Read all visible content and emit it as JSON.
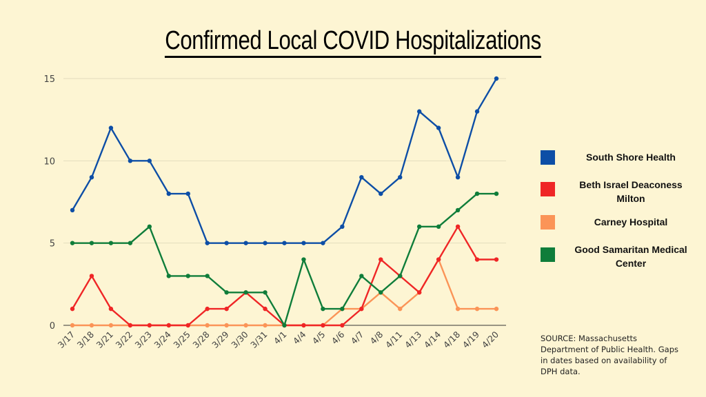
{
  "chart_data": {
    "type": "line",
    "title": "Confirmed Local COVID Hospitalizations",
    "xlabel": "",
    "ylabel": "",
    "ylim": [
      0,
      15
    ],
    "yticks": [
      0,
      5,
      10,
      15
    ],
    "grid": true,
    "legend": "right",
    "categories": [
      "3/17",
      "3/18",
      "3/21",
      "3/22",
      "3/23",
      "3/24",
      "3/25",
      "3/28",
      "3/29",
      "3/30",
      "3/31",
      "4/1",
      "4/4",
      "4/5",
      "4/6",
      "4/7",
      "4/8",
      "4/11",
      "4/13",
      "4/14",
      "4/18",
      "4/19",
      "4/20"
    ],
    "series": [
      {
        "name": "South Shore Health",
        "color": "#0d4ea6",
        "values": [
          7,
          9,
          12,
          10,
          10,
          8,
          8,
          5,
          5,
          5,
          5,
          5,
          5,
          5,
          6,
          9,
          8,
          9,
          13,
          12,
          9,
          13,
          15
        ]
      },
      {
        "name": "Beth Israel Deaconess Milton",
        "color": "#ef2626",
        "values": [
          1,
          3,
          1,
          0,
          0,
          0,
          0,
          1,
          1,
          2,
          1,
          0,
          0,
          0,
          0,
          1,
          4,
          3,
          2,
          4,
          6,
          4,
          4
        ]
      },
      {
        "name": "Carney Hospital",
        "color": "#fb9457",
        "values": [
          0,
          0,
          0,
          0,
          0,
          0,
          0,
          0,
          0,
          0,
          0,
          0,
          0,
          0,
          1,
          1,
          2,
          1,
          2,
          4,
          1,
          1,
          1
        ]
      },
      {
        "name": "Good Samaritan Medical Center",
        "color": "#0f7d3a",
        "values": [
          5,
          5,
          5,
          5,
          6,
          3,
          3,
          3,
          2,
          2,
          2,
          0,
          4,
          1,
          1,
          3,
          2,
          3,
          6,
          6,
          7,
          8,
          8
        ]
      }
    ]
  },
  "legend_labels": [
    "South Shore Health",
    "Beth Israel Deaconess Milton",
    "Carney Hospital",
    "Good Samaritan Medical Center"
  ],
  "source_note": "SOURCE: Massachusetts Department of Public Health. Gaps in dates based on availability of DPH data."
}
